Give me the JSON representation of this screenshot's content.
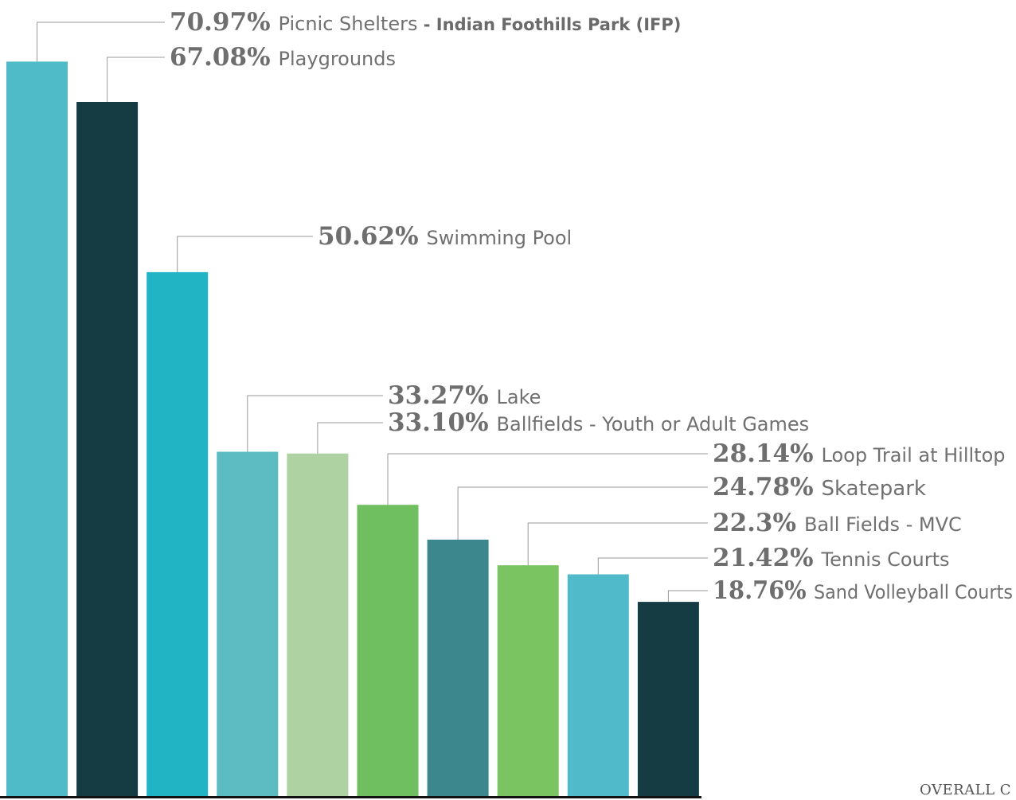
{
  "chart_data": {
    "type": "bar",
    "categories": [
      "Picnic Shelters",
      "Playgrounds",
      "Swimming Pool",
      "Lake",
      "Ballfields - Youth or Adult Games",
      "Loop Trail at Hilltop",
      "Skatepark",
      "Ball Fields - MVC",
      "Tennis Courts",
      "Sand Volleyball Courts"
    ],
    "values": [
      70.97,
      67.08,
      50.62,
      33.27,
      33.1,
      28.14,
      24.78,
      22.3,
      21.42,
      18.76
    ],
    "value_labels": [
      "70.97%",
      "67.08%",
      "50.62%",
      "33.27%",
      "33.10%",
      "28.14%",
      "24.78%",
      "22.3%",
      "21.42%",
      "18.76%"
    ],
    "category_sublabels": [
      " - Indian Foothills Park (IFP)",
      "",
      "",
      "",
      "",
      "",
      "",
      "",
      "",
      ""
    ],
    "colors": [
      "#4fbbc9",
      "#143c42",
      "#21b4c5",
      "#5cbcc2",
      "#aed2a1",
      "#6fbe60",
      "#3b878d",
      "#7ac462",
      "#50bacb",
      "#143c42"
    ],
    "axis_color": "#111111",
    "leader_color": "#9a9a9a",
    "ylim": [
      0,
      76
    ],
    "grid": false,
    "legend": "none"
  },
  "footer_text": "OVERALL C"
}
